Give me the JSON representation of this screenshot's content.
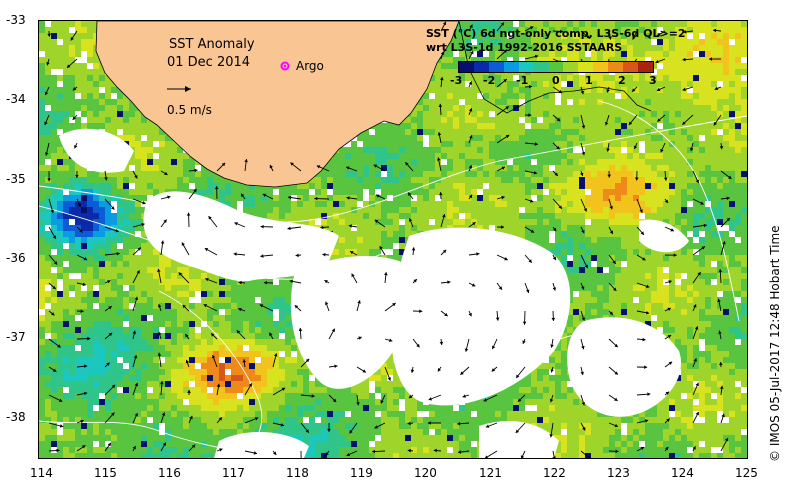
{
  "title": {
    "line1": "SST Anomaly",
    "line2": "01 Dec 2014"
  },
  "legend": {
    "argo_label": "Argo",
    "argo_color": "#ff00ff",
    "velocity_label": "0.5 m/s"
  },
  "colorbar": {
    "line1": "SST (°C) 6d ngt-only comp, L3S-6d QL>=2",
    "line2": "wrt L3S-1d 1992-2016 SSTAARS",
    "ticks": [
      "-3",
      "-2",
      "-1",
      "0",
      "1",
      "2",
      "3"
    ],
    "colors": [
      "#08106e",
      "#0a2aa8",
      "#0c5cd6",
      "#0b9be0",
      "#1cc7c0",
      "#2ec48a",
      "#58c440",
      "#9fd52a",
      "#d9e21e",
      "#f2c31c",
      "#ee8a1a",
      "#d8561a",
      "#a8240e"
    ]
  },
  "axes": {
    "x_ticks": [
      "114",
      "115",
      "116",
      "117",
      "118",
      "119",
      "120",
      "121",
      "122",
      "123",
      "124",
      "125"
    ],
    "y_ticks": [
      "-33",
      "-34",
      "-35",
      "-36",
      "-37",
      "-38"
    ]
  },
  "credit": "© IMOS 05-Jul-2017 12:48 Hobart Time",
  "colors": {
    "land": "#f9c593",
    "no_data": "#ffffff",
    "contour": "#ffffff"
  }
}
